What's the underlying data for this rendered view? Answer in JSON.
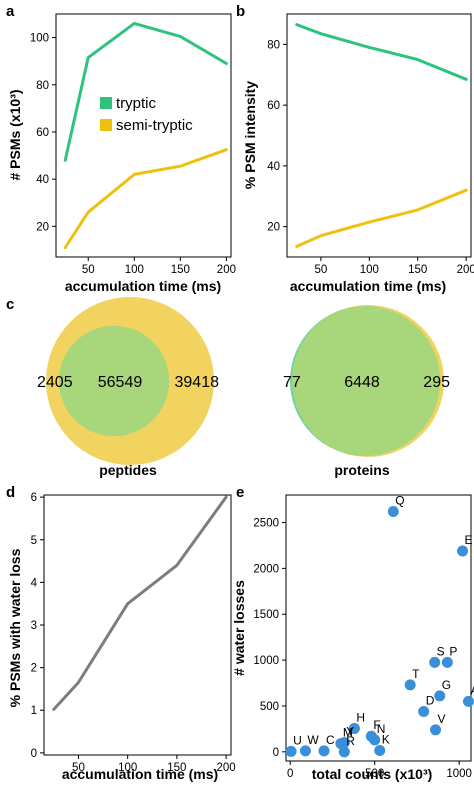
{
  "colors": {
    "tryptic": "#2ec27e",
    "semi_tryptic": "#eec10f",
    "water_line": "#7d7d7d",
    "scatter_point": "#3a8fd9",
    "venn_left": "#6fd3a3",
    "venn_right": "#f2d35f",
    "venn_overlap": "#a8d67a"
  },
  "panel_labels": {
    "a": "a",
    "b": "b",
    "c": "c",
    "d": "d",
    "e": "e"
  },
  "chart_data": [
    {
      "panel": "a",
      "type": "line",
      "xlabel": "accumulation time (ms)",
      "ylabel": "# PSMs (x10³)",
      "x": [
        25,
        50,
        100,
        150,
        200
      ],
      "xticks": [
        50,
        100,
        150,
        200
      ],
      "yticks": [
        20,
        40,
        60,
        80,
        100
      ],
      "xlim": [
        15,
        205
      ],
      "ylim": [
        7,
        110
      ],
      "legend_position": "center-left",
      "series": [
        {
          "name": "tryptic",
          "values": [
            48,
            91.5,
            106,
            100.5,
            89
          ]
        },
        {
          "name": "semi-tryptic",
          "values": [
            11,
            26,
            42,
            45.5,
            52.5
          ]
        }
      ]
    },
    {
      "panel": "b",
      "type": "line",
      "xlabel": "accumulation time (ms)",
      "ylabel": "% PSM intensity",
      "x": [
        25,
        50,
        100,
        150,
        200
      ],
      "xticks": [
        50,
        100,
        150,
        200
      ],
      "yticks": [
        20,
        40,
        60,
        80
      ],
      "xlim": [
        15,
        205
      ],
      "ylim": [
        10,
        90
      ],
      "series": [
        {
          "name": "",
          "values": [
            86.5,
            83.5,
            79,
            75,
            68.5
          ]
        },
        {
          "name": "",
          "values": [
            13.5,
            17,
            21.5,
            25.5,
            32
          ]
        }
      ]
    },
    {
      "panel": "c",
      "type": "venn",
      "diagrams": [
        {
          "label": "peptides",
          "left_only": "2405",
          "overlap": "56549",
          "right_only": "39418"
        },
        {
          "label": "proteins",
          "left_only": "77",
          "overlap": "6448",
          "right_only": "295"
        }
      ]
    },
    {
      "panel": "d",
      "type": "line",
      "xlabel": "accumulation time (ms)",
      "ylabel": "% PSMs with water loss",
      "x": [
        25,
        50,
        100,
        150,
        200
      ],
      "xticks": [
        50,
        100,
        150,
        200
      ],
      "yticks": [
        0,
        1,
        2,
        3,
        4,
        5,
        6
      ],
      "xlim": [
        15,
        205
      ],
      "ylim": [
        -0.05,
        6.05
      ],
      "series": [
        {
          "name": "",
          "values": [
            1.02,
            1.65,
            3.5,
            4.4,
            6.0
          ]
        }
      ]
    },
    {
      "panel": "e",
      "type": "scatter",
      "xlabel": "total counts (x10³)",
      "ylabel": "# water losses",
      "xticks": [
        0,
        500,
        1000
      ],
      "yticks": [
        0,
        500,
        1000,
        1500,
        2000,
        2500
      ],
      "xlim": [
        -25,
        1070
      ],
      "ylim": [
        -100,
        2800
      ],
      "points": [
        {
          "label": "Q",
          "x": 610,
          "y": 2620
        },
        {
          "label": "E",
          "x": 1020,
          "y": 2190
        },
        {
          "label": "S",
          "x": 855,
          "y": 975
        },
        {
          "label": "P",
          "x": 930,
          "y": 975
        },
        {
          "label": "T",
          "x": 710,
          "y": 730
        },
        {
          "label": "G",
          "x": 885,
          "y": 610
        },
        {
          "label": "A",
          "x": 1055,
          "y": 550
        },
        {
          "label": "D",
          "x": 790,
          "y": 440
        },
        {
          "label": "V",
          "x": 860,
          "y": 240
        },
        {
          "label": "H",
          "x": 380,
          "y": 255
        },
        {
          "label": "F",
          "x": 480,
          "y": 170
        },
        {
          "label": "N",
          "x": 500,
          "y": 130
        },
        {
          "label": "M",
          "x": 300,
          "y": 90
        },
        {
          "label": "Y",
          "x": 320,
          "y": 100
        },
        {
          "label": "K",
          "x": 530,
          "y": 15
        },
        {
          "label": "R",
          "x": 320,
          "y": 0
        },
        {
          "label": "C",
          "x": 200,
          "y": 10
        },
        {
          "label": "U",
          "x": 5,
          "y": 5
        },
        {
          "label": "W",
          "x": 90,
          "y": 10
        }
      ]
    }
  ]
}
